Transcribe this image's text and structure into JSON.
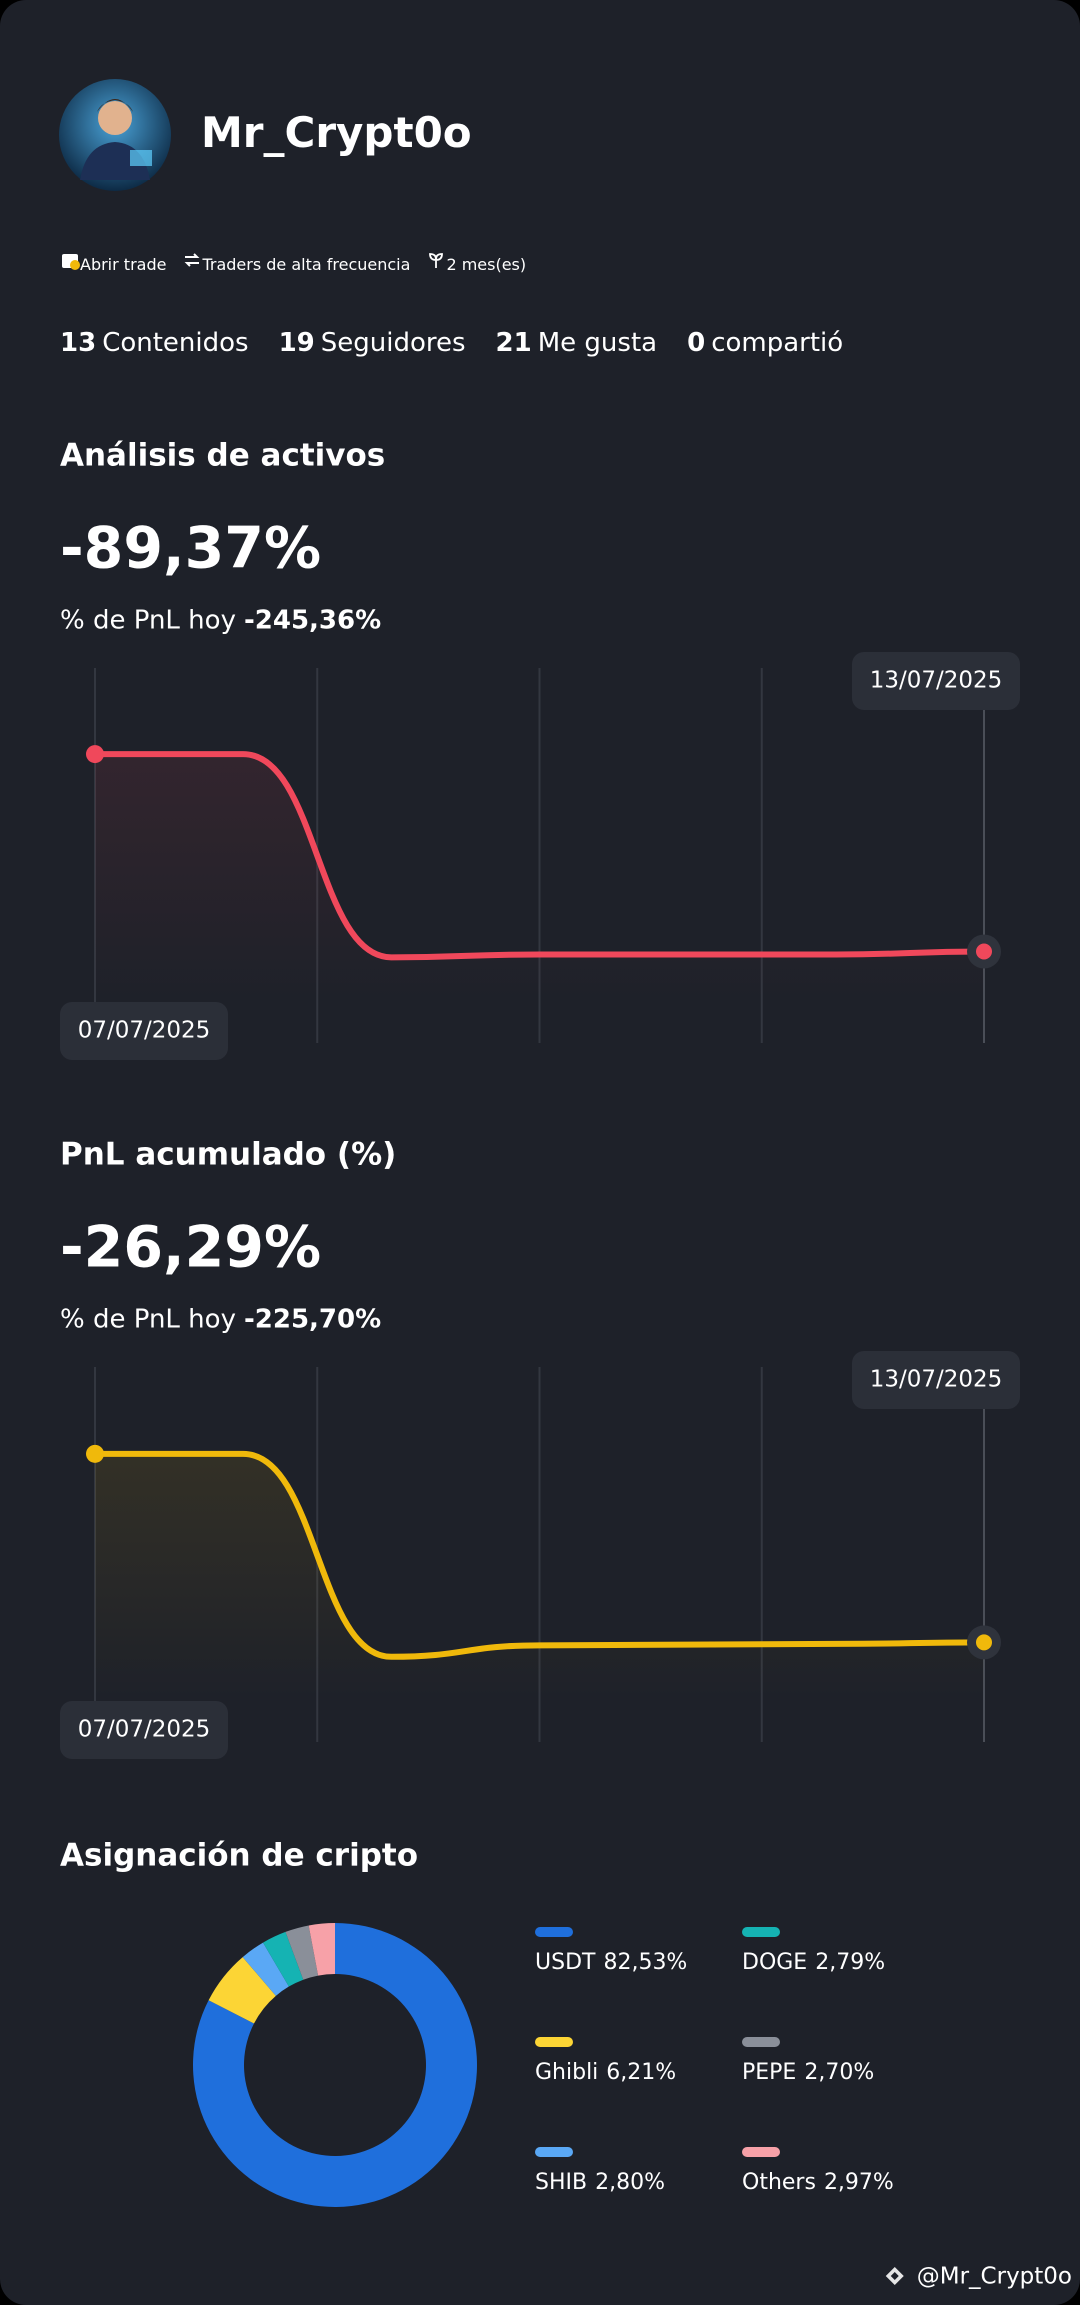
{
  "profile": {
    "name": "Mr_Crypt0o",
    "tags": [
      "Abrir trade",
      "Traders de alta frecuencia",
      "2 mes(es)"
    ],
    "stats": [
      {
        "value": "13",
        "label": "Contenidos"
      },
      {
        "value": "19",
        "label": "Seguidores"
      },
      {
        "value": "21",
        "label": "Me gusta"
      },
      {
        "value": "0",
        "label": "compartió"
      }
    ]
  },
  "chart_data": [
    {
      "type": "line",
      "title": "Análisis de activos",
      "headline": "-89,37%",
      "subtitle_label": "% de PnL hoy",
      "subtitle_value": "-245,36%",
      "categories": [
        "07/07/2025",
        null,
        null,
        null,
        null,
        null,
        "13/07/2025"
      ],
      "series": [
        {
          "color": "#f0485b",
          "values": [
            0,
            0,
            -92,
            -90.7,
            -90.7,
            -90.7,
            -89.37
          ]
        }
      ],
      "ylim": [
        -100,
        10
      ],
      "grid": true
    },
    {
      "type": "line",
      "title": "PnL acumulado (%)",
      "headline": "-26,29%",
      "subtitle_label": "% de PnL hoy",
      "subtitle_value": "-225,70%",
      "categories": [
        "07/07/2025",
        null,
        null,
        null,
        null,
        null,
        "13/07/2025"
      ],
      "series": [
        {
          "color": "#f0b90b",
          "values": [
            0,
            0,
            -28.3,
            -26.7,
            -26.6,
            -26.5,
            -26.29
          ]
        }
      ],
      "ylim": [
        -30,
        5
      ],
      "grid": true
    },
    {
      "type": "pie",
      "title": "Asignación de cripto",
      "categories": [
        "USDT",
        "Ghibli",
        "SHIB",
        "DOGE",
        "PEPE",
        "Others"
      ],
      "values": [
        82.53,
        6.21,
        2.8,
        2.79,
        2.7,
        2.97
      ],
      "value_labels": [
        "82,53%",
        "6,21%",
        "2,80%",
        "2,79%",
        "2,70%",
        "2,97%"
      ],
      "colors": [
        "#1f6fdc",
        "#fcd535",
        "#5aa8f5",
        "#15b3b3",
        "#8a8f99",
        "#f7a1a8"
      ]
    }
  ],
  "footer": "@Mr_Crypt0o"
}
